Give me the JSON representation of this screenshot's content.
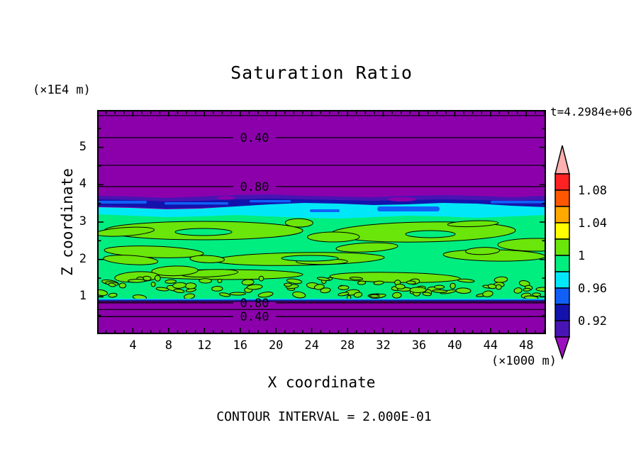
{
  "title": "Saturation Ratio",
  "annotations": {
    "time": "t=4.2984e+06",
    "footer": "CONTOUR INTERVAL = 2.000E-01"
  },
  "x_axis": {
    "title": "X coordinate",
    "unit": "(×1000 m)",
    "tick_labels": [
      "4",
      "8",
      "12",
      "16",
      "20",
      "24",
      "28",
      "32",
      "36",
      "40",
      "44",
      "48"
    ]
  },
  "y_axis": {
    "title": "Z coordinate",
    "unit": "(×1E4 m)",
    "tick_labels": [
      "5",
      "4",
      "3",
      "2",
      "1"
    ]
  },
  "colors": {
    "purple": "#8C00AC",
    "indigo": "#4814B4",
    "navy": "#1412AC",
    "blue": "#1060F8",
    "cyan": "#00E8F8",
    "spring": "#00EE80",
    "chartreuse": "#6AE60A",
    "yellow": "#FFFF00",
    "orange": "#FFA800",
    "orangered": "#FF5800",
    "red": "#FF2222",
    "pink": "#FFB0B0",
    "under_arrow": "#9C10C0"
  },
  "colorbar": {
    "labels_top_to_bottom": [
      "1.08",
      "1.04",
      "1",
      "0.96",
      "0.92"
    ],
    "labeled_boundary_indices": [
      1,
      3,
      5,
      7,
      9
    ],
    "segment_color_keys_top_to_bottom": [
      "red",
      "orangered",
      "orange",
      "yellow",
      "chartreuse",
      "spring",
      "cyan",
      "blue",
      "navy",
      "indigo"
    ],
    "boundary_values_top_to_bottom": [
      1.1,
      1.08,
      1.06,
      1.04,
      1.02,
      1.0,
      0.98,
      0.96,
      0.94,
      0.92,
      0.9
    ],
    "over_color_key": "pink",
    "under_color_key": "under_arrow"
  },
  "chart_data": {
    "type": "heatmap",
    "subtype": "filled-contour",
    "title": "Saturation Ratio",
    "xlabel": "X coordinate",
    "ylabel": "Z coordinate",
    "x_unit_factor": "(×1000 m)",
    "z_unit_factor": "(×1E4 m)",
    "x_range": [
      0,
      50.2
    ],
    "z_range": [
      0,
      6
    ],
    "x_major_ticks": [
      4,
      8,
      12,
      16,
      20,
      24,
      28,
      32,
      36,
      40,
      44,
      48
    ],
    "x_minor_step": 1,
    "z_major_ticks": [
      1,
      2,
      3,
      4,
      5
    ],
    "z_minor_step": 0.5,
    "time_stamp": "t=4.2984e+06",
    "contour_interval": 0.2,
    "fill_levels": [
      0.9,
      0.92,
      0.94,
      0.96,
      0.98,
      1.0,
      1.02,
      1.04,
      1.06,
      1.08,
      1.1
    ],
    "line_contours": [
      {
        "value": 0.2,
        "z": 5.85,
        "labeled": false,
        "label": ""
      },
      {
        "value": 0.4,
        "z": 5.26,
        "labeled": true,
        "label": "0.40"
      },
      {
        "value": 0.6,
        "z": 4.52,
        "labeled": false,
        "label": ""
      },
      {
        "value": 0.8,
        "z": 3.95,
        "labeled": true,
        "label": "0.80"
      },
      {
        "value": 0.8,
        "z": 0.84,
        "labeled": true,
        "label": "0.80"
      },
      {
        "value": 0.6,
        "z": 0.66,
        "labeled": false,
        "label": ""
      },
      {
        "value": 0.4,
        "z": 0.47,
        "labeled": true,
        "label": "0.40"
      }
    ],
    "field_summary": {
      "upper_region": "saturation ratio < 0.9 (purple) from z≈3.75 to z=6, increasing downward through labeled 0.40 and 0.80 contours",
      "transition_band": "thin stratified band z≈3.4–3.75 passing 0.90→0.98 (indigo, navy, blue, cyan)",
      "mixed_region": "near-saturated turbulent layer z≈0.9–3.4 of 0.98–1.00 (spring green) with many 1.00–1.02 (chartreuse) blobs outlined by the 1.0 contour; small-scale speckle near the bottom of the layer",
      "lower_region": "sharp drop below z≈0.9 back to <0.9 (purple) through labeled 0.80 and 0.40 contours"
    }
  }
}
